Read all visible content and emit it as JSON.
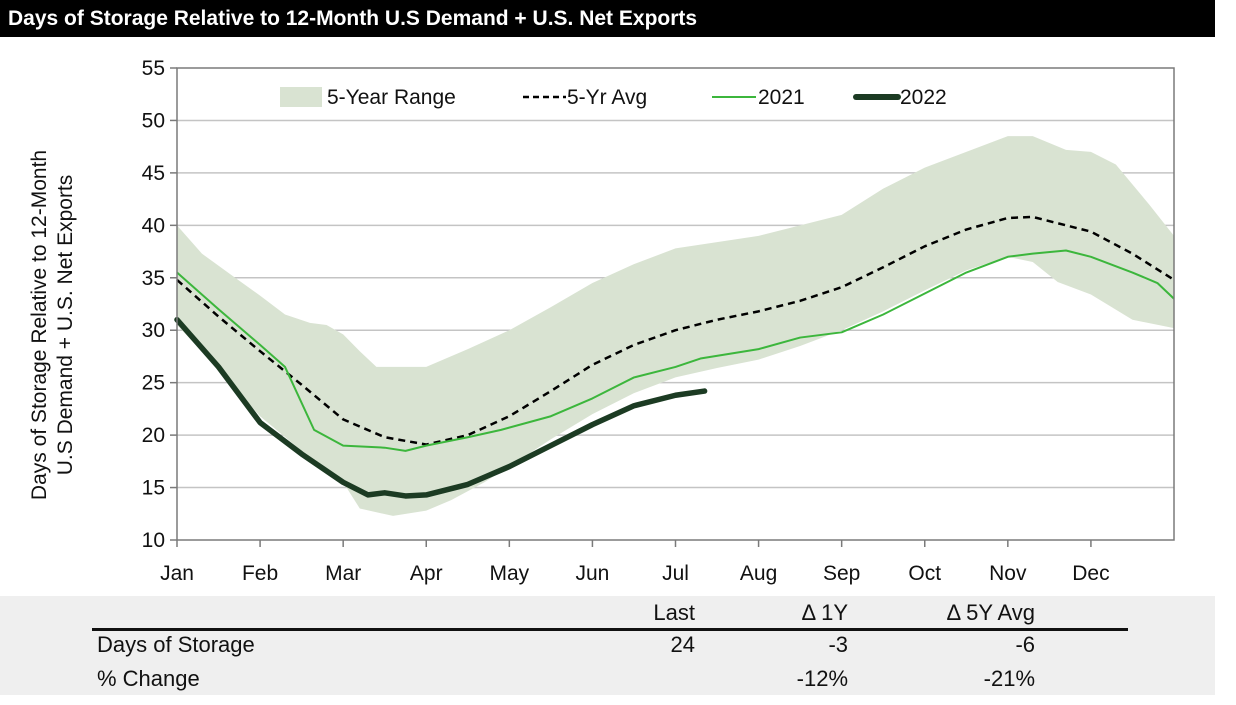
{
  "title": "Days of Storage Relative to 12-Month U.S Demand + U.S. Net Exports",
  "chart_data": {
    "type": "line",
    "title": "Days of Storage Relative to 12-Month U.S Demand + U.S. Net Exports",
    "ylabel": [
      "Days of Storage Relative to 12-Month",
      "U.S Demand + U.S. Net Exports"
    ],
    "xlabel": "",
    "x_unit": "month of year (0 = start of Jan)",
    "x_tick_labels": [
      "Jan",
      "Feb",
      "Mar",
      "Apr",
      "May",
      "Jun",
      "Jul",
      "Aug",
      "Sep",
      "Oct",
      "Nov",
      "Dec"
    ],
    "xlim": [
      0,
      12
    ],
    "ylim": [
      10,
      55
    ],
    "y_ticks": [
      10,
      15,
      20,
      25,
      30,
      35,
      40,
      45,
      50,
      55
    ],
    "grid": "horizontal",
    "legend_position": "top",
    "colors": {
      "range": "#d9e3d2",
      "avg": "#000000",
      "y2021": "#3cb63c",
      "y2022": "#1c3b23"
    },
    "band": {
      "name": "5-Year Range",
      "upper": [
        [
          0,
          40
        ],
        [
          0.3,
          37.3
        ],
        [
          0.7,
          35
        ],
        [
          1,
          33.3
        ],
        [
          1.3,
          31.5
        ],
        [
          1.6,
          30.7
        ],
        [
          1.8,
          30.5
        ],
        [
          2,
          29.6
        ],
        [
          2.2,
          28
        ],
        [
          2.4,
          26.5
        ],
        [
          3,
          26.5
        ],
        [
          3.5,
          28.2
        ],
        [
          4,
          30
        ],
        [
          4.5,
          32.2
        ],
        [
          5,
          34.5
        ],
        [
          5.5,
          36.3
        ],
        [
          6,
          37.8
        ],
        [
          6.5,
          38.4
        ],
        [
          7,
          39
        ],
        [
          7.5,
          40
        ],
        [
          8,
          41
        ],
        [
          8.5,
          43.5
        ],
        [
          9,
          45.5
        ],
        [
          9.5,
          47
        ],
        [
          10,
          48.5
        ],
        [
          10.3,
          48.5
        ],
        [
          10.7,
          47.2
        ],
        [
          11,
          47
        ],
        [
          11.3,
          45.8
        ],
        [
          11.7,
          42
        ],
        [
          12,
          39
        ]
      ],
      "lower": [
        [
          0,
          30.5
        ],
        [
          0.5,
          26.3
        ],
        [
          1,
          21.8
        ],
        [
          1.5,
          18.5
        ],
        [
          2,
          15.5
        ],
        [
          2.2,
          13
        ],
        [
          2.6,
          12.3
        ],
        [
          3,
          12.8
        ],
        [
          3.3,
          13.8
        ],
        [
          3.7,
          15.5
        ],
        [
          4,
          17
        ],
        [
          4.5,
          19.6
        ],
        [
          5,
          22
        ],
        [
          5.5,
          24
        ],
        [
          6,
          25.5
        ],
        [
          6.5,
          26.4
        ],
        [
          7,
          27.2
        ],
        [
          7.5,
          28.5
        ],
        [
          8,
          30
        ],
        [
          8.5,
          31.8
        ],
        [
          9,
          33.8
        ],
        [
          9.5,
          35.7
        ],
        [
          10,
          37
        ],
        [
          10.3,
          36.5
        ],
        [
          10.6,
          34.6
        ],
        [
          11,
          33.4
        ],
        [
          11.5,
          31
        ],
        [
          12,
          30.2
        ]
      ]
    },
    "series": [
      {
        "name": "5-Yr Avg",
        "style": "dashed",
        "points": [
          [
            0,
            34.8
          ],
          [
            0.5,
            31.3
          ],
          [
            1,
            28
          ],
          [
            1.5,
            24.8
          ],
          [
            2,
            21.5
          ],
          [
            2.5,
            19.8
          ],
          [
            3,
            19.1
          ],
          [
            3.5,
            20
          ],
          [
            4,
            21.8
          ],
          [
            4.5,
            24.2
          ],
          [
            5,
            26.7
          ],
          [
            5.5,
            28.6
          ],
          [
            6,
            30
          ],
          [
            6.5,
            31
          ],
          [
            7,
            31.8
          ],
          [
            7.5,
            32.8
          ],
          [
            8,
            34.1
          ],
          [
            8.5,
            36
          ],
          [
            9,
            38
          ],
          [
            9.5,
            39.6
          ],
          [
            10,
            40.7
          ],
          [
            10.3,
            40.8
          ],
          [
            10.6,
            40.2
          ],
          [
            11,
            39.4
          ],
          [
            11.5,
            37.3
          ],
          [
            12,
            34.8
          ]
        ]
      },
      {
        "name": "2021",
        "style": "thin",
        "points": [
          [
            0,
            35.5
          ],
          [
            0.5,
            32
          ],
          [
            1,
            28.6
          ],
          [
            1.3,
            26.5
          ],
          [
            1.65,
            20.5
          ],
          [
            2,
            19
          ],
          [
            2.5,
            18.8
          ],
          [
            2.75,
            18.5
          ],
          [
            3,
            19
          ],
          [
            3.5,
            19.8
          ],
          [
            3.9,
            20.5
          ],
          [
            4.5,
            21.8
          ],
          [
            5,
            23.5
          ],
          [
            5.5,
            25.5
          ],
          [
            6,
            26.5
          ],
          [
            6.3,
            27.3
          ],
          [
            7,
            28.2
          ],
          [
            7.5,
            29.3
          ],
          [
            8,
            29.8
          ],
          [
            8.5,
            31.5
          ],
          [
            9,
            33.5
          ],
          [
            9.5,
            35.5
          ],
          [
            10,
            37
          ],
          [
            10.3,
            37.3
          ],
          [
            10.7,
            37.6
          ],
          [
            11,
            37
          ],
          [
            11.5,
            35.5
          ],
          [
            11.8,
            34.5
          ],
          [
            12,
            33
          ]
        ]
      },
      {
        "name": "2022",
        "style": "thick",
        "points": [
          [
            0,
            31
          ],
          [
            0.5,
            26.5
          ],
          [
            1,
            21.2
          ],
          [
            1.5,
            18.2
          ],
          [
            2,
            15.5
          ],
          [
            2.3,
            14.3
          ],
          [
            2.5,
            14.5
          ],
          [
            2.75,
            14.2
          ],
          [
            3,
            14.3
          ],
          [
            3.5,
            15.3
          ],
          [
            4,
            17
          ],
          [
            4.5,
            19
          ],
          [
            5,
            21
          ],
          [
            5.5,
            22.8
          ],
          [
            6,
            23.8
          ],
          [
            6.35,
            24.2
          ]
        ]
      }
    ]
  },
  "table": {
    "headers": [
      "Last",
      "Δ 1Y",
      "Δ 5Y Avg"
    ],
    "rows": [
      {
        "label": "Days of Storage",
        "values": [
          "24",
          "-3",
          "-6"
        ]
      },
      {
        "label": "% Change",
        "values": [
          "",
          "-12%",
          "-21%"
        ]
      }
    ]
  }
}
